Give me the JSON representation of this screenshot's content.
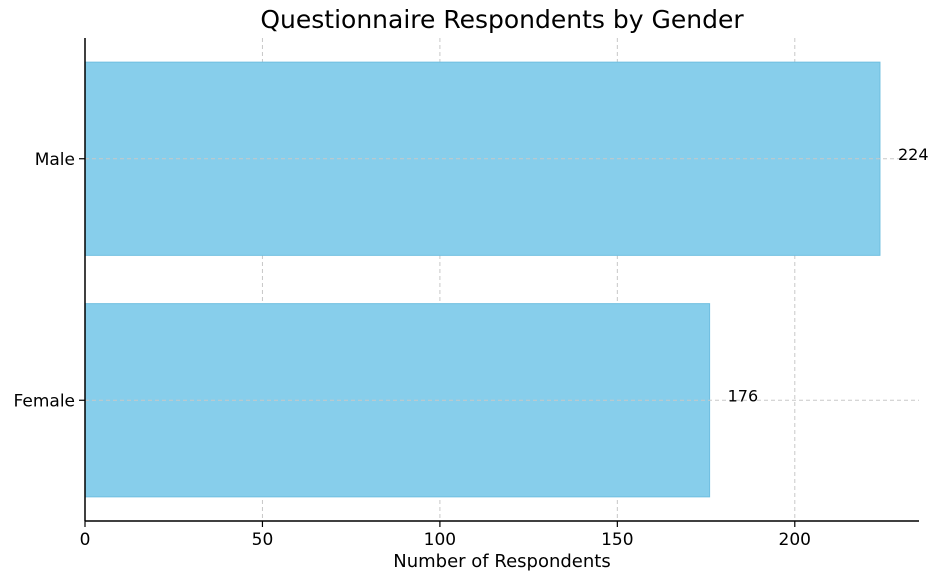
{
  "chart_data": {
    "type": "bar",
    "orientation": "horizontal",
    "title": "Questionnaire Respondents by Gender",
    "xlabel": "Number of Respondents",
    "ylabel": "",
    "categories": [
      "Male",
      "Female"
    ],
    "values": [
      224,
      176
    ],
    "data_labels": [
      "224",
      "176"
    ],
    "xlim": [
      0,
      235
    ],
    "xticks": [
      0,
      50,
      100,
      150,
      200
    ],
    "xtick_labels": [
      "0",
      "50",
      "100",
      "150",
      "200"
    ],
    "grid": true,
    "grid_style": "dashed",
    "bar_color": "#87CEEB",
    "bar_edge_color": "#6FBFE0",
    "grid_color": "#c8c8c8",
    "axis_color": "#000000",
    "legend": "none"
  }
}
